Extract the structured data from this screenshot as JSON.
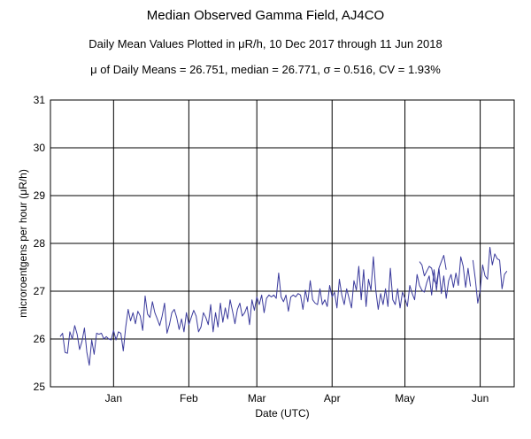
{
  "chart_data": {
    "type": "line",
    "title": "Median Observed Gamma Field, AJ4CO",
    "subtitle": "Daily Mean Values Plotted in μR/h, 10 Dec 2017 through 11 Jun 2018",
    "stats_line": "μ of Daily Means = 26.751,   median = 26.771,   σ = 0.516,   CV = 1.93%",
    "xlabel": "Date (UTC)",
    "ylabel": "microroentgens per hour (μR/h)",
    "ylim": [
      25,
      31
    ],
    "yticks": [
      "25",
      "26",
      "27",
      "28",
      "29",
      "30",
      "31"
    ],
    "xlim": [
      "2017-12-06",
      "2018-06-15"
    ],
    "xticks": [
      {
        "label": "Jan",
        "date": "2018-01-01"
      },
      {
        "label": "Feb",
        "date": "2018-02-01"
      },
      {
        "label": "Mar",
        "date": "2018-03-01"
      },
      {
        "label": "Apr",
        "date": "2018-04-01"
      },
      {
        "label": "May",
        "date": "2018-05-01"
      },
      {
        "label": "Jun",
        "date": "2018-06-01"
      }
    ],
    "grid": true,
    "line_color": "#3a3a9c",
    "series": [
      {
        "start_date": "2017-12-10",
        "values": [
          26.05,
          26.12,
          25.72,
          25.7,
          26.15,
          26.0,
          26.28,
          26.1,
          25.78,
          25.95,
          26.23,
          25.72,
          25.45,
          25.98,
          25.68,
          26.12,
          26.1,
          26.12,
          26.0,
          26.05,
          26.0,
          25.98,
          26.18,
          25.98,
          26.15,
          26.12,
          25.75,
          26.25,
          26.62,
          26.38,
          26.55,
          26.32,
          26.58,
          26.48,
          26.18,
          26.9,
          26.52,
          26.45,
          26.78,
          26.55,
          26.42,
          26.28,
          26.48,
          26.75,
          26.12,
          26.3,
          26.55,
          26.62,
          26.45,
          26.2,
          26.42,
          26.15,
          26.55,
          26.3,
          26.45,
          26.6,
          26.48,
          26.15,
          26.25,
          26.55,
          26.45,
          26.3,
          26.72,
          26.15,
          26.55,
          26.25,
          26.75,
          26.35,
          26.65,
          26.42,
          26.82,
          26.58,
          26.32,
          26.62,
          26.75,
          26.48,
          26.55,
          26.68,
          26.3,
          26.82,
          26.6,
          26.88,
          26.72,
          26.92,
          26.55,
          26.85,
          26.92,
          26.88,
          26.92,
          26.85,
          27.38,
          26.88,
          26.78,
          26.92,
          26.58,
          26.88,
          26.92,
          26.88,
          26.95,
          26.92,
          26.62,
          27.02,
          26.78,
          27.22,
          26.82,
          26.75,
          26.72,
          27.05,
          26.72,
          26.82,
          26.68,
          27.12,
          26.88,
          26.98,
          26.65,
          27.25,
          26.92,
          26.72,
          27.05,
          26.85,
          26.65,
          27.22,
          27.02,
          27.52,
          26.82,
          27.45,
          26.68,
          27.25,
          27.02,
          27.72,
          27.02,
          26.62,
          26.95,
          26.72,
          27.05,
          26.68,
          27.48,
          26.82,
          26.72,
          27.05,
          26.65,
          26.98,
          26.85,
          26.68,
          27.12,
          26.95,
          26.82,
          27.35,
          27.12,
          27.02,
          26.98,
          27.18,
          27.32,
          26.92,
          27.45,
          27.02,
          27.48,
          26.95,
          27.32,
          26.85,
          27.22,
          27.35,
          27.08,
          27.38,
          27.12,
          27.72,
          27.52,
          27.08,
          27.48,
          27.1
        ]
      },
      {
        "start_date": "2018-05-07",
        "values": [
          27.62,
          27.55,
          27.32,
          27.42,
          27.52,
          27.48,
          27.22,
          27.15,
          27.48,
          27.62,
          27.75,
          27.45
        ]
      },
      {
        "start_date": "2018-05-29",
        "values": [
          27.65,
          27.25,
          26.75,
          27.02,
          27.55,
          27.32,
          27.25,
          27.92,
          27.55,
          27.78,
          27.68,
          27.65,
          27.05,
          27.35,
          27.42
        ]
      }
    ]
  }
}
